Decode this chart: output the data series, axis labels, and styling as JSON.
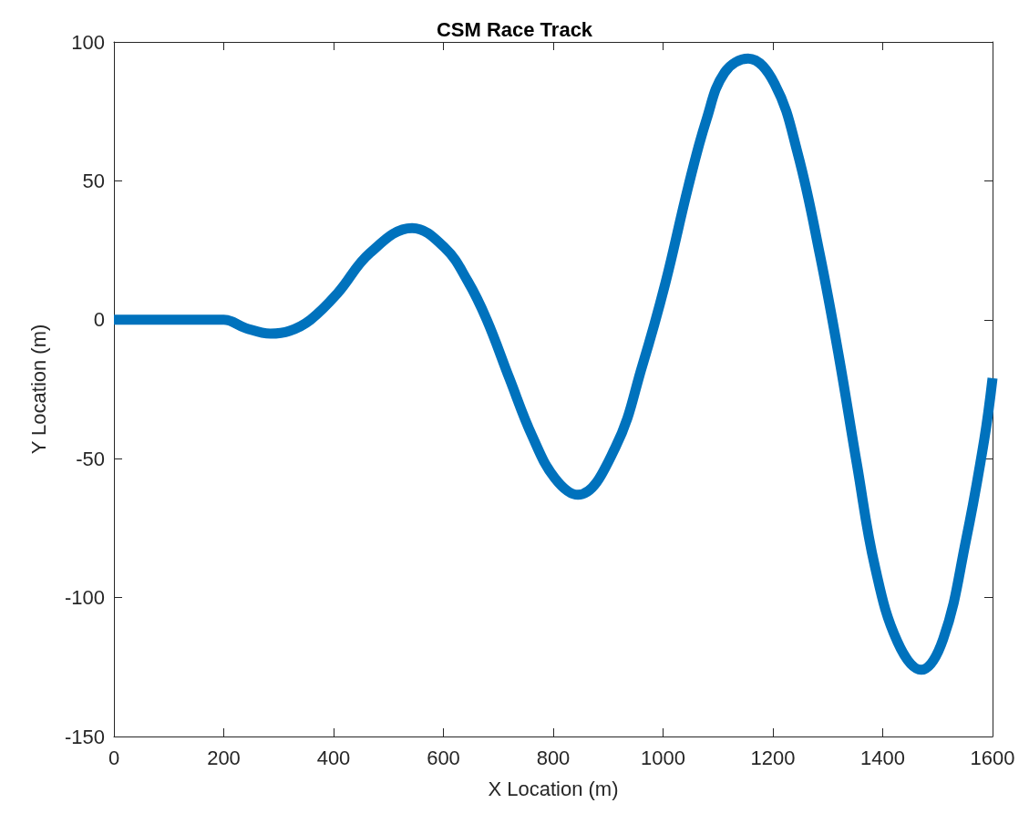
{
  "chart_data": {
    "type": "line",
    "title": "CSM Race Track",
    "xlabel": "X Location (m)",
    "ylabel": "Y Location (m)",
    "series": [
      {
        "color": "#0072bd",
        "x": [
          0,
          100,
          200,
          240,
          285,
          320,
          358,
          407,
          466,
          543,
          602,
          644,
          679,
          720,
          762,
          803,
          845,
          913,
          963,
          1004,
          1046,
          1079,
          1112,
          1155,
          1203,
          1245,
          1286,
          1320,
          1353,
          1386,
          1427,
          1470,
          1510,
          1552,
          1585,
          1600
        ],
        "values": [
          0,
          0,
          0,
          -3,
          -5,
          -4,
          0,
          9.5,
          24,
          33,
          26,
          14,
          0,
          -21,
          -42,
          -57,
          -63,
          -46,
          -16,
          13,
          48,
          72,
          89,
          94,
          85,
          60,
          23,
          -13,
          -52,
          -89,
          -116,
          -126,
          -115,
          -79,
          -43,
          -21
        ]
      }
    ],
    "xlim": [
      0,
      1600
    ],
    "xticks": [
      0,
      200,
      400,
      600,
      800,
      1000,
      1200,
      1400,
      1600
    ],
    "ylim": [
      -150,
      100
    ],
    "yticks": [
      -150,
      -100,
      -50,
      0,
      50,
      100
    ],
    "grid": false,
    "marker": "none",
    "line_style": "solid"
  }
}
